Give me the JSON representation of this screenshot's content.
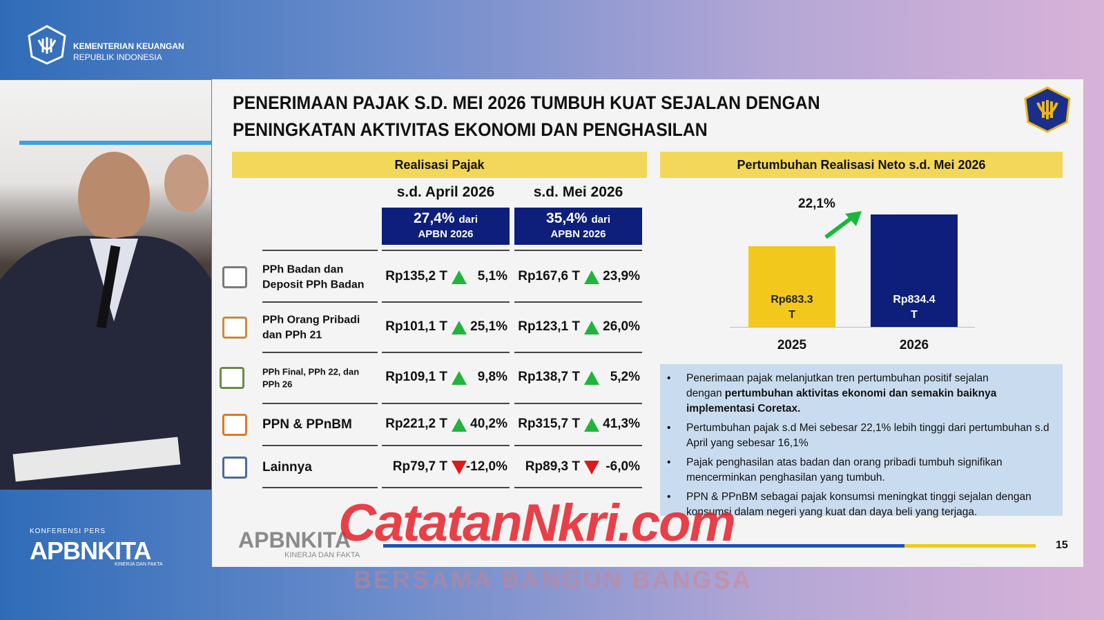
{
  "header": {
    "org_line1": "KEMENTERIAN KEUANGAN",
    "org_line2": "REPUBLIK INDONESIA"
  },
  "branding": {
    "label": "KONFERENSI PERS",
    "name": "APBNKITA",
    "tagline": "KINERJA DAN FAKTA"
  },
  "slide": {
    "title": "PENERIMAAN PAJAK S.D. MEI 2026 TUMBUH KUAT SEJALAN DENGAN PENINGKATAN AKTIVITAS EKONOMI DAN PENGHASILAN",
    "page_number": "15",
    "footer_logo": "APBNKITA",
    "footer_tagline": "KINERJA DAN FAKTA",
    "table": {
      "heading": "Realisasi Pajak",
      "columns": [
        {
          "period": "s.d. April 2026",
          "share": "27,4%",
          "share_of": "dari",
          "share_base": "APBN 2026"
        },
        {
          "period": "s.d. Mei 2026",
          "share": "35,4%",
          "share_of": "dari",
          "share_base": "APBN 2026"
        }
      ],
      "rows": [
        {
          "label": "PPh Badan dan Deposit PPh Badan",
          "cells": [
            {
              "amount": "Rp135,2 T",
              "trend": "up",
              "growth": "5,1%"
            },
            {
              "amount": "Rp167,6 T",
              "trend": "up",
              "growth": "23,9%"
            }
          ]
        },
        {
          "label": "PPh Orang Pribadi dan PPh 21",
          "cells": [
            {
              "amount": "Rp101,1 T",
              "trend": "up",
              "growth": "25,1%"
            },
            {
              "amount": "Rp123,1 T",
              "trend": "up",
              "growth": "26,0%"
            }
          ]
        },
        {
          "label": "PPh Final, PPh 22, dan PPh 26",
          "cells": [
            {
              "amount": "Rp109,1 T",
              "trend": "up",
              "growth": "9,8%"
            },
            {
              "amount": "Rp138,7 T",
              "trend": "up",
              "growth": "5,2%"
            }
          ]
        },
        {
          "label": "PPN & PPnBM",
          "cells": [
            {
              "amount": "Rp221,2 T",
              "trend": "up",
              "growth": "40,2%"
            },
            {
              "amount": "Rp315,7 T",
              "trend": "up",
              "growth": "41,3%"
            }
          ]
        },
        {
          "label": "Lainnya",
          "cells": [
            {
              "amount": "Rp79,7 T",
              "trend": "down",
              "growth": "-12,0%"
            },
            {
              "amount": "Rp89,3 T",
              "trend": "down",
              "growth": "-6,0%"
            }
          ]
        }
      ]
    },
    "chart": {
      "type": "bar",
      "heading": "Pertumbuhan Realisasi Neto s.d. Mei 2026",
      "categories": [
        "2025",
        "2026"
      ],
      "values": [
        683.3,
        834.4
      ],
      "value_labels": [
        "Rp683.3 T",
        "Rp834.4 T"
      ],
      "colors": [
        "#f2c81c",
        "#0d1f7a"
      ],
      "ylim": [
        300,
        900
      ],
      "growth_label": "22,1%"
    },
    "notes": [
      {
        "text": "Penerimaan pajak melanjutkan tren pertumbuhan positif sejalan dengan",
        "emphasis": "pertumbuhan aktivitas ekonomi dan semakin baiknya implementasi Coretax."
      },
      {
        "text": "Pertumbuhan pajak s.d Mei sebesar 22,1% lebih tinggi dari pertumbuhan s.d April yang sebesar 16,1%"
      },
      {
        "text": "Pajak penghasilan atas badan dan orang pribadi tumbuh signifikan mencerminkan penghasilan yang tumbuh."
      },
      {
        "text": "PPN & PPnBM sebagai pajak konsumsi meningkat tinggi sejalan dengan konsumsi dalam negeri yang kuat dan daya beli yang terjaga."
      }
    ]
  },
  "watermark": {
    "site": "CatatanNkri.com",
    "slogan": "BERSAMA BANGUN BANGSA"
  }
}
